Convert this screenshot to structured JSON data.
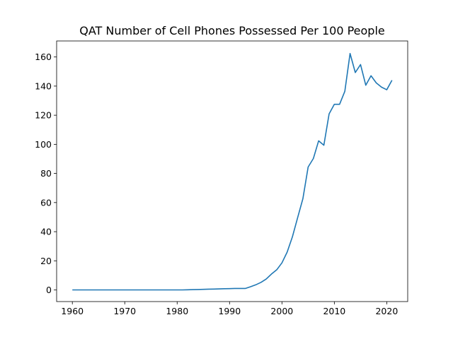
{
  "chart_data": {
    "type": "line",
    "title": "QAT Number of Cell Phones Possessed Per 100 People",
    "xlabel": "",
    "ylabel": "",
    "xlim": [
      1957,
      2024
    ],
    "ylim": [
      -8,
      171
    ],
    "x_ticks": [
      1960,
      1970,
      1980,
      1990,
      2000,
      2010,
      2020
    ],
    "y_ticks": [
      0,
      20,
      40,
      60,
      80,
      100,
      120,
      140,
      160
    ],
    "grid": false,
    "legend": "none",
    "series": [
      {
        "color": "#1f77b4",
        "x": [
          1960,
          1961,
          1962,
          1963,
          1964,
          1965,
          1966,
          1967,
          1968,
          1969,
          1970,
          1971,
          1972,
          1973,
          1974,
          1975,
          1976,
          1977,
          1978,
          1979,
          1980,
          1981,
          1982,
          1983,
          1984,
          1985,
          1986,
          1987,
          1988,
          1989,
          1990,
          1991,
          1992,
          1993,
          1994,
          1995,
          1996,
          1997,
          1998,
          1999,
          2000,
          2001,
          2002,
          2003,
          2004,
          2005,
          2006,
          2007,
          2008,
          2009,
          2010,
          2011,
          2012,
          2013,
          2014,
          2015,
          2016,
          2017,
          2018,
          2019,
          2020,
          2021
        ],
        "values": [
          0,
          0,
          0,
          0,
          0,
          0,
          0,
          0,
          0,
          0,
          0,
          0,
          0,
          0,
          0,
          0,
          0,
          0,
          0,
          0,
          0,
          0,
          0.1,
          0.2,
          0.3,
          0.4,
          0.5,
          0.6,
          0.7,
          0.8,
          0.9,
          1.0,
          1.0,
          1.0,
          2.2,
          3.5,
          5.2,
          7.5,
          10.9,
          13.8,
          18.6,
          26.0,
          36.5,
          49.7,
          62.7,
          84.4,
          90.3,
          102.4,
          99.4,
          120.9,
          127.5,
          127.5,
          136.4,
          162.4,
          149.3,
          154.8,
          140.6,
          147.1,
          142.2,
          139.3,
          137.5,
          144.0
        ]
      }
    ]
  }
}
